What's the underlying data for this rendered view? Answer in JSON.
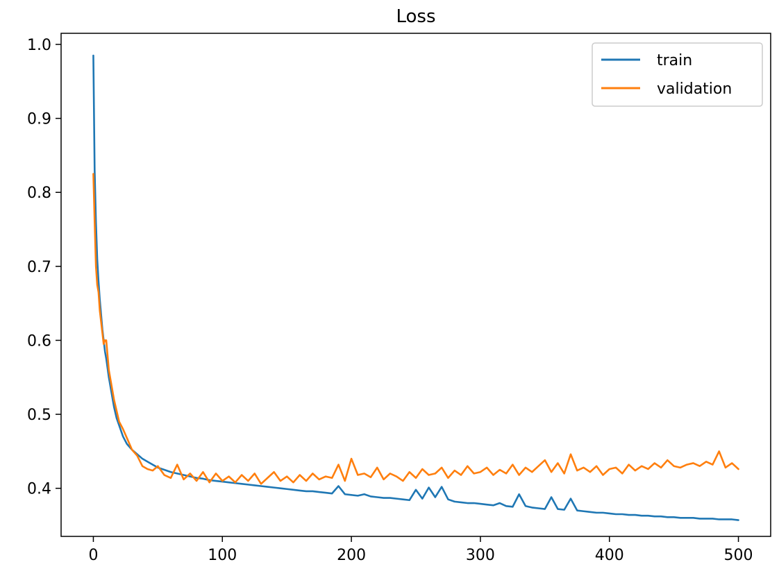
{
  "chart_data": {
    "type": "line",
    "title": "Loss",
    "xlabel": "",
    "ylabel": "",
    "xlim": [
      -25,
      525
    ],
    "ylim": [
      0.335,
      1.015
    ],
    "xticks": [
      0,
      100,
      200,
      300,
      400,
      500
    ],
    "yticks": [
      0.4,
      0.5,
      0.6,
      0.7,
      0.8,
      0.9,
      1.0
    ],
    "xtick_labels": [
      "0",
      "100",
      "200",
      "300",
      "400",
      "500"
    ],
    "ytick_labels": [
      "0.4",
      "0.5",
      "0.6",
      "0.7",
      "0.8",
      "0.9",
      "1.0"
    ],
    "grid": false,
    "legend_position": "top-right",
    "colors": {
      "train": "#1f77b4",
      "validation": "#ff7f0e"
    },
    "series": [
      {
        "name": "train",
        "x": [
          0,
          1,
          2,
          3,
          4,
          5,
          6,
          7,
          8,
          9,
          10,
          12,
          14,
          16,
          18,
          20,
          23,
          26,
          30,
          34,
          38,
          42,
          46,
          50,
          55,
          60,
          65,
          70,
          75,
          80,
          85,
          90,
          95,
          100,
          105,
          110,
          115,
          120,
          125,
          130,
          135,
          140,
          145,
          150,
          155,
          160,
          165,
          170,
          175,
          180,
          185,
          190,
          195,
          200,
          205,
          210,
          215,
          220,
          225,
          230,
          235,
          240,
          245,
          250,
          255,
          260,
          265,
          270,
          275,
          280,
          285,
          290,
          295,
          300,
          305,
          310,
          315,
          320,
          325,
          330,
          335,
          340,
          345,
          350,
          355,
          360,
          365,
          370,
          375,
          380,
          385,
          390,
          395,
          400,
          405,
          410,
          415,
          420,
          425,
          430,
          435,
          440,
          445,
          450,
          455,
          460,
          465,
          470,
          475,
          480,
          485,
          490,
          495,
          500
        ],
        "y": [
          0.985,
          0.83,
          0.76,
          0.71,
          0.68,
          0.655,
          0.635,
          0.615,
          0.6,
          0.585,
          0.575,
          0.55,
          0.53,
          0.51,
          0.495,
          0.485,
          0.47,
          0.46,
          0.452,
          0.446,
          0.44,
          0.436,
          0.432,
          0.428,
          0.425,
          0.422,
          0.42,
          0.418,
          0.416,
          0.414,
          0.413,
          0.411,
          0.41,
          0.409,
          0.408,
          0.407,
          0.406,
          0.405,
          0.404,
          0.403,
          0.402,
          0.401,
          0.4,
          0.399,
          0.398,
          0.397,
          0.396,
          0.396,
          0.395,
          0.394,
          0.393,
          0.403,
          0.392,
          0.391,
          0.39,
          0.392,
          0.389,
          0.388,
          0.387,
          0.387,
          0.386,
          0.385,
          0.384,
          0.398,
          0.386,
          0.401,
          0.388,
          0.402,
          0.385,
          0.382,
          0.381,
          0.38,
          0.38,
          0.379,
          0.378,
          0.377,
          0.38,
          0.376,
          0.375,
          0.392,
          0.376,
          0.374,
          0.373,
          0.372,
          0.388,
          0.372,
          0.371,
          0.386,
          0.37,
          0.369,
          0.368,
          0.367,
          0.367,
          0.366,
          0.365,
          0.365,
          0.364,
          0.364,
          0.363,
          0.363,
          0.362,
          0.362,
          0.361,
          0.361,
          0.36,
          0.36,
          0.36,
          0.359,
          0.359,
          0.359,
          0.358,
          0.358,
          0.358,
          0.357
        ]
      },
      {
        "name": "validation",
        "x": [
          0,
          1,
          2,
          3,
          4,
          5,
          6,
          7,
          8,
          9,
          10,
          12,
          14,
          16,
          18,
          20,
          23,
          26,
          30,
          34,
          38,
          42,
          46,
          50,
          55,
          60,
          65,
          70,
          75,
          80,
          85,
          90,
          95,
          100,
          105,
          110,
          115,
          120,
          125,
          130,
          135,
          140,
          145,
          150,
          155,
          160,
          165,
          170,
          175,
          180,
          185,
          190,
          195,
          200,
          205,
          210,
          215,
          220,
          225,
          230,
          235,
          240,
          245,
          250,
          255,
          260,
          265,
          270,
          275,
          280,
          285,
          290,
          295,
          300,
          305,
          310,
          315,
          320,
          325,
          330,
          335,
          340,
          345,
          350,
          355,
          360,
          365,
          370,
          375,
          380,
          385,
          390,
          395,
          400,
          405,
          410,
          415,
          420,
          425,
          430,
          435,
          440,
          445,
          450,
          455,
          460,
          465,
          470,
          475,
          480,
          485,
          490,
          495,
          500
        ],
        "y": [
          0.825,
          0.76,
          0.7,
          0.675,
          0.665,
          0.64,
          0.625,
          0.61,
          0.595,
          0.6,
          0.6,
          0.56,
          0.54,
          0.52,
          0.505,
          0.49,
          0.48,
          0.468,
          0.452,
          0.444,
          0.43,
          0.426,
          0.424,
          0.43,
          0.418,
          0.414,
          0.432,
          0.412,
          0.42,
          0.41,
          0.422,
          0.408,
          0.42,
          0.41,
          0.416,
          0.408,
          0.418,
          0.41,
          0.42,
          0.406,
          0.414,
          0.422,
          0.41,
          0.416,
          0.408,
          0.418,
          0.41,
          0.42,
          0.412,
          0.416,
          0.414,
          0.432,
          0.41,
          0.44,
          0.418,
          0.42,
          0.415,
          0.428,
          0.412,
          0.42,
          0.416,
          0.41,
          0.422,
          0.414,
          0.426,
          0.418,
          0.42,
          0.428,
          0.414,
          0.424,
          0.418,
          0.43,
          0.42,
          0.422,
          0.428,
          0.418,
          0.425,
          0.42,
          0.432,
          0.418,
          0.428,
          0.422,
          0.43,
          0.438,
          0.422,
          0.434,
          0.42,
          0.446,
          0.424,
          0.428,
          0.422,
          0.43,
          0.418,
          0.426,
          0.428,
          0.42,
          0.432,
          0.424,
          0.43,
          0.426,
          0.434,
          0.428,
          0.438,
          0.43,
          0.428,
          0.432,
          0.434,
          0.43,
          0.436,
          0.432,
          0.45,
          0.428,
          0.434,
          0.426
        ]
      }
    ]
  }
}
